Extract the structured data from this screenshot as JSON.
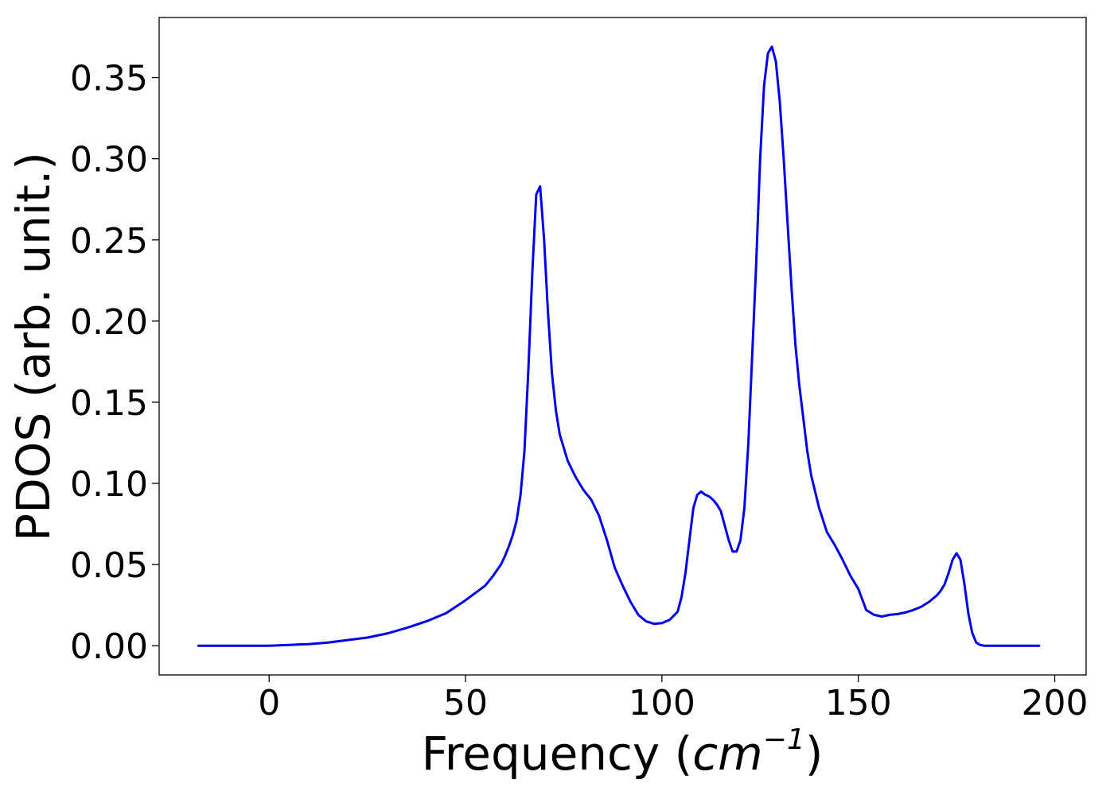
{
  "chart_data": {
    "type": "line",
    "xlabel": "Frequency (",
    "xlabel_unit": "cm",
    "xlabel_exponent": "−1",
    "xlabel_close": ")",
    "ylabel": "PDOS (arb. unit.)",
    "xlim": [
      -28,
      208
    ],
    "ylim": [
      -0.018,
      0.387
    ],
    "xticks": [
      0,
      50,
      100,
      150,
      200
    ],
    "xtick_labels": [
      "0",
      "50",
      "100",
      "150",
      "200"
    ],
    "yticks": [
      0.0,
      0.05,
      0.1,
      0.15,
      0.2,
      0.25,
      0.3,
      0.35
    ],
    "ytick_labels": [
      "0.00",
      "0.05",
      "0.10",
      "0.15",
      "0.20",
      "0.25",
      "0.30",
      "0.35"
    ],
    "grid": false,
    "series": [
      {
        "color": "#0000ee",
        "x": [
          -18,
          -10,
          0,
          5,
          10,
          15,
          20,
          25,
          30,
          35,
          40,
          45,
          50,
          55,
          57,
          59,
          60,
          61,
          62,
          63,
          64,
          65,
          66,
          67,
          68,
          69,
          70,
          71,
          72,
          73,
          74,
          76,
          78,
          80,
          82,
          84,
          86,
          88,
          90,
          92,
          94,
          96,
          98,
          100,
          102,
          104,
          105,
          106,
          107,
          108,
          109,
          110,
          111,
          112,
          113,
          114,
          115,
          116,
          117,
          118,
          119,
          120,
          121,
          122,
          123,
          124,
          125,
          126,
          127,
          128,
          129,
          130,
          131,
          132,
          133,
          134,
          135,
          136,
          137,
          138,
          139,
          140,
          142,
          144,
          146,
          148,
          150,
          152,
          154,
          156,
          158,
          160,
          162,
          164,
          166,
          168,
          170,
          171,
          172,
          173,
          174,
          175,
          176,
          177,
          178,
          179,
          180,
          181,
          182,
          183,
          185,
          190,
          196
        ],
        "y": [
          0.0,
          0.0,
          0.0,
          0.0005,
          0.001,
          0.002,
          0.0035,
          0.005,
          0.0075,
          0.011,
          0.015,
          0.02,
          0.028,
          0.037,
          0.043,
          0.05,
          0.055,
          0.061,
          0.068,
          0.077,
          0.093,
          0.12,
          0.17,
          0.23,
          0.278,
          0.283,
          0.25,
          0.205,
          0.168,
          0.145,
          0.13,
          0.114,
          0.104,
          0.096,
          0.09,
          0.08,
          0.065,
          0.048,
          0.037,
          0.027,
          0.019,
          0.015,
          0.0135,
          0.014,
          0.016,
          0.021,
          0.03,
          0.045,
          0.065,
          0.085,
          0.093,
          0.095,
          0.093,
          0.092,
          0.09,
          0.087,
          0.083,
          0.074,
          0.065,
          0.058,
          0.058,
          0.065,
          0.085,
          0.125,
          0.18,
          0.235,
          0.3,
          0.345,
          0.365,
          0.369,
          0.36,
          0.335,
          0.3,
          0.26,
          0.22,
          0.185,
          0.16,
          0.14,
          0.12,
          0.105,
          0.095,
          0.085,
          0.07,
          0.062,
          0.053,
          0.043,
          0.035,
          0.022,
          0.019,
          0.018,
          0.019,
          0.0195,
          0.0205,
          0.022,
          0.024,
          0.027,
          0.031,
          0.034,
          0.038,
          0.045,
          0.053,
          0.057,
          0.053,
          0.038,
          0.02,
          0.008,
          0.002,
          0.0005,
          0.0,
          0.0,
          0.0,
          0.0,
          0.0
        ]
      }
    ]
  }
}
